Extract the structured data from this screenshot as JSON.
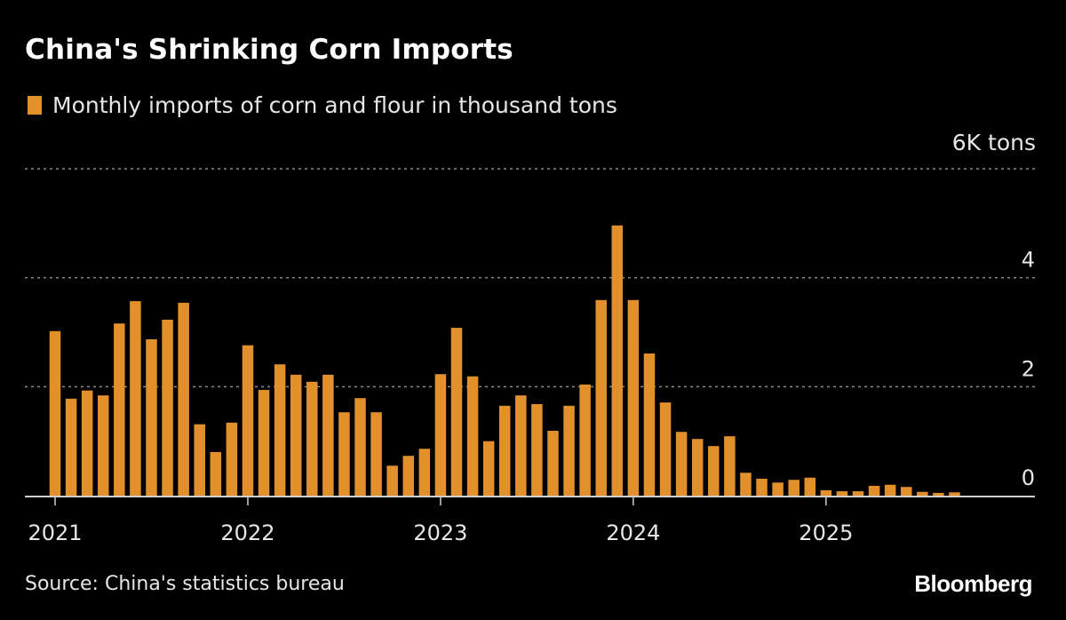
{
  "header": {
    "title": "China's Shrinking Corn Imports"
  },
  "legend": {
    "label": "Monthly imports of corn and flour in thousand tons",
    "color": "#E1902C"
  },
  "footer": {
    "source": "Source: China's statistics bureau",
    "brand": "Bloomberg"
  },
  "colors": {
    "background": "#000000",
    "bar": "#E1902C",
    "grid": "#8a8a8a",
    "axis": "#cfcfcf",
    "text": "#e6e6e6"
  },
  "chart_data": {
    "type": "bar",
    "title": "China's Shrinking Corn Imports",
    "subtitle": "Monthly imports of corn and flour in thousand tons",
    "xlabel": "",
    "ylabel": "",
    "unit_label": "6K tons",
    "ylim": [
      0,
      6
    ],
    "y_ticks": [
      {
        "value": 6,
        "label": "6K tons"
      },
      {
        "value": 4,
        "label": "4"
      },
      {
        "value": 2,
        "label": "2"
      },
      {
        "value": 0,
        "label": "0"
      }
    ],
    "x_ticks": [
      {
        "index": 0,
        "label": "2021"
      },
      {
        "index": 12,
        "label": "2022"
      },
      {
        "index": 24,
        "label": "2023"
      },
      {
        "index": 36,
        "label": "2024"
      },
      {
        "index": 48,
        "label": "2025"
      }
    ],
    "grid": true,
    "grid_style": "dotted horizontal",
    "legend_position": "top-left",
    "y_axis_position": "right",
    "categories": [
      "2021-01",
      "2021-02",
      "2021-03",
      "2021-04",
      "2021-05",
      "2021-06",
      "2021-07",
      "2021-08",
      "2021-09",
      "2021-10",
      "2021-11",
      "2021-12",
      "2022-01",
      "2022-02",
      "2022-03",
      "2022-04",
      "2022-05",
      "2022-06",
      "2022-07",
      "2022-08",
      "2022-09",
      "2022-10",
      "2022-11",
      "2022-12",
      "2023-01",
      "2023-02",
      "2023-03",
      "2023-04",
      "2023-05",
      "2023-06",
      "2023-07",
      "2023-08",
      "2023-09",
      "2023-10",
      "2023-11",
      "2023-12",
      "2024-01",
      "2024-02",
      "2024-03",
      "2024-04",
      "2024-05",
      "2024-06",
      "2024-07",
      "2024-08",
      "2024-09",
      "2024-10",
      "2024-11",
      "2024-12",
      "2025-01",
      "2025-02",
      "2025-03",
      "2025-04",
      "2025-05",
      "2025-06",
      "2025-07",
      "2025-08",
      "2025-09"
    ],
    "series": [
      {
        "name": "Monthly imports of corn and flour in thousand tons",
        "color": "#E1902C",
        "values": [
          3.02,
          1.78,
          1.93,
          1.84,
          3.16,
          3.57,
          2.87,
          3.23,
          3.54,
          1.31,
          0.8,
          1.34,
          2.76,
          1.94,
          2.41,
          2.22,
          2.09,
          2.22,
          1.53,
          1.79,
          1.53,
          0.55,
          0.73,
          0.86,
          2.23,
          3.08,
          2.19,
          1.0,
          1.65,
          1.84,
          1.68,
          1.19,
          1.65,
          2.04,
          3.59,
          4.96,
          3.59,
          2.61,
          1.71,
          1.17,
          1.04,
          0.91,
          1.09,
          0.42,
          0.31,
          0.24,
          0.29,
          0.33,
          0.1,
          0.08,
          0.08,
          0.18,
          0.2,
          0.16,
          0.07,
          0.05,
          0.06
        ]
      }
    ]
  }
}
